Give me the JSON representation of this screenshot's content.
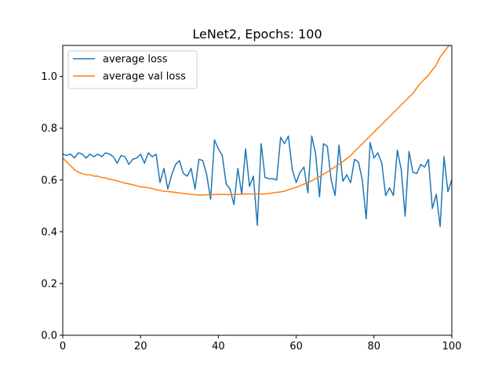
{
  "chart_data": {
    "type": "line",
    "title": "LeNet2, Epochs: 100",
    "xlabel": "",
    "ylabel": "",
    "xlim": [
      0,
      100
    ],
    "ylim": [
      0,
      1.12
    ],
    "xticks": [
      "0",
      "20",
      "40",
      "60",
      "80",
      "100"
    ],
    "yticks": [
      "0.0",
      "0.2",
      "0.4",
      "0.6",
      "0.8",
      "1.0"
    ],
    "grid": false,
    "legend_position": "upper-left",
    "series": [
      {
        "name": "average loss",
        "color": "#1f77b4",
        "x": [
          0,
          1,
          2,
          3,
          4,
          5,
          6,
          7,
          8,
          9,
          10,
          11,
          12,
          13,
          14,
          15,
          16,
          17,
          18,
          19,
          20,
          21,
          22,
          23,
          24,
          25,
          26,
          27,
          28,
          29,
          30,
          31,
          32,
          33,
          34,
          35,
          36,
          37,
          38,
          39,
          40,
          41,
          42,
          43,
          44,
          45,
          46,
          47,
          48,
          49,
          50,
          51,
          52,
          53,
          54,
          55,
          56,
          57,
          58,
          59,
          60,
          61,
          62,
          63,
          64,
          65,
          66,
          67,
          68,
          69,
          70,
          71,
          72,
          73,
          74,
          75,
          76,
          77,
          78,
          79,
          80,
          81,
          82,
          83,
          84,
          85,
          86,
          87,
          88,
          89,
          90,
          91,
          92,
          93,
          94,
          95,
          96,
          97,
          98,
          99,
          100
        ],
        "y": [
          0.7,
          0.695,
          0.7,
          0.685,
          0.705,
          0.7,
          0.685,
          0.7,
          0.69,
          0.7,
          0.69,
          0.705,
          0.7,
          0.69,
          0.665,
          0.695,
          0.69,
          0.66,
          0.68,
          0.685,
          0.7,
          0.665,
          0.705,
          0.69,
          0.7,
          0.59,
          0.645,
          0.565,
          0.62,
          0.66,
          0.675,
          0.625,
          0.615,
          0.645,
          0.565,
          0.68,
          0.675,
          0.62,
          0.525,
          0.755,
          0.72,
          0.695,
          0.585,
          0.565,
          0.505,
          0.645,
          0.545,
          0.72,
          0.575,
          0.615,
          0.425,
          0.74,
          0.61,
          0.605,
          0.605,
          0.6,
          0.765,
          0.74,
          0.77,
          0.64,
          0.59,
          0.63,
          0.65,
          0.55,
          0.77,
          0.7,
          0.535,
          0.74,
          0.73,
          0.6,
          0.54,
          0.735,
          0.595,
          0.62,
          0.59,
          0.68,
          0.67,
          0.6,
          0.45,
          0.745,
          0.685,
          0.705,
          0.665,
          0.54,
          0.57,
          0.54,
          0.715,
          0.64,
          0.46,
          0.71,
          0.63,
          0.625,
          0.66,
          0.65,
          0.68,
          0.49,
          0.545,
          0.42,
          0.69,
          0.555,
          0.6
        ]
      },
      {
        "name": "average val loss",
        "color": "#ff7f0e",
        "x": [
          0,
          1,
          2,
          3,
          4,
          5,
          6,
          7,
          8,
          9,
          10,
          11,
          12,
          13,
          14,
          15,
          16,
          17,
          18,
          19,
          20,
          21,
          22,
          23,
          24,
          25,
          26,
          27,
          28,
          29,
          30,
          31,
          32,
          33,
          34,
          35,
          36,
          37,
          38,
          39,
          40,
          41,
          42,
          43,
          44,
          45,
          46,
          47,
          48,
          49,
          50,
          51,
          52,
          53,
          54,
          55,
          56,
          57,
          58,
          59,
          60,
          61,
          62,
          63,
          64,
          65,
          66,
          67,
          68,
          69,
          70,
          71,
          72,
          73,
          74,
          75,
          76,
          77,
          78,
          79,
          80,
          81,
          82,
          83,
          84,
          85,
          86,
          87,
          88,
          89,
          90,
          91,
          92,
          93,
          94,
          95,
          96,
          97,
          98,
          99,
          100
        ],
        "y": [
          0.685,
          0.67,
          0.655,
          0.64,
          0.63,
          0.625,
          0.62,
          0.62,
          0.615,
          0.615,
          0.61,
          0.608,
          0.603,
          0.6,
          0.597,
          0.592,
          0.588,
          0.585,
          0.582,
          0.578,
          0.573,
          0.573,
          0.57,
          0.567,
          0.563,
          0.56,
          0.556,
          0.556,
          0.554,
          0.552,
          0.55,
          0.548,
          0.546,
          0.545,
          0.543,
          0.542,
          0.542,
          0.543,
          0.543,
          0.544,
          0.544,
          0.544,
          0.544,
          0.543,
          0.544,
          0.545,
          0.545,
          0.546,
          0.546,
          0.546,
          0.546,
          0.546,
          0.546,
          0.548,
          0.55,
          0.552,
          0.554,
          0.557,
          0.562,
          0.567,
          0.572,
          0.578,
          0.584,
          0.59,
          0.597,
          0.605,
          0.613,
          0.622,
          0.631,
          0.641,
          0.651,
          0.661,
          0.671,
          0.683,
          0.695,
          0.71,
          0.725,
          0.74,
          0.755,
          0.77,
          0.785,
          0.8,
          0.815,
          0.83,
          0.845,
          0.86,
          0.875,
          0.89,
          0.905,
          0.92,
          0.935,
          0.955,
          0.975,
          0.99,
          1.005,
          1.025,
          1.045,
          1.075,
          1.095,
          1.115,
          1.125
        ]
      }
    ]
  }
}
